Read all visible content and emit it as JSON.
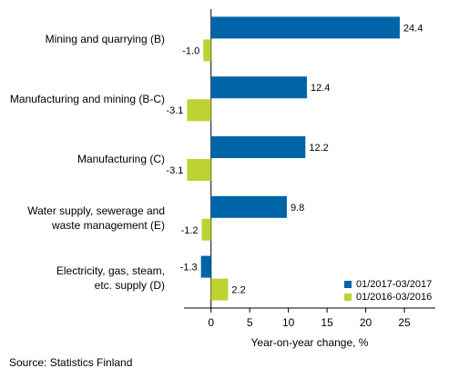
{
  "chart_data": {
    "type": "bar",
    "orientation": "horizontal",
    "categories": [
      [
        "Mining and quarrying (B)"
      ],
      [
        "Manufacturing and mining (B-C)"
      ],
      [
        "Manufacturing (C)"
      ],
      [
        "Water supply, sewerage and",
        "waste management (E)"
      ],
      [
        "Electricity, gas, steam,",
        "etc. supply (D)"
      ]
    ],
    "series": [
      {
        "name": "01/2017-03/2017",
        "color": "#0064a8",
        "values": [
          24.4,
          12.4,
          12.2,
          9.8,
          -1.3
        ],
        "labels": [
          "24.4",
          "12.4",
          "12.2",
          "9.8",
          "-1.3"
        ]
      },
      {
        "name": "01/2016-03/2016",
        "color": "#bed232",
        "values": [
          -1.0,
          -3.1,
          -3.1,
          -1.2,
          2.2
        ],
        "labels": [
          "-1.0",
          "-3.1",
          "-3.1",
          "-1.2",
          "2.2"
        ]
      }
    ],
    "xlim": [
      -3.5,
      29
    ],
    "xticks": [
      0,
      5,
      10,
      15,
      20,
      25
    ],
    "xlabel": "Year-on-year change, %",
    "legend_position": "bottom-right",
    "grid": false
  },
  "source": "Source: Statistics Finland"
}
